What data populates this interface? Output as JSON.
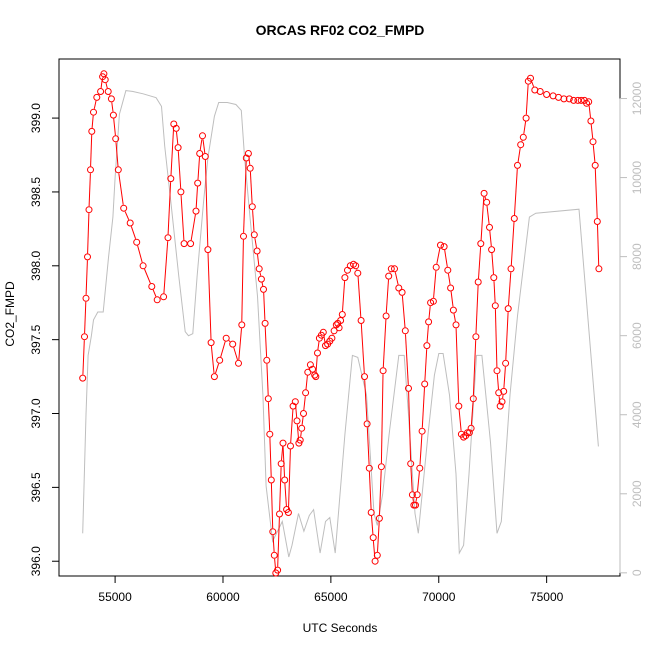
{
  "chart_data": {
    "type": "line",
    "title": "ORCAS RF02 CO2_FMPD",
    "xlabel": "UTC Seconds",
    "ylabel": "CO2_FMPD",
    "xlim": [
      52400,
      78400
    ],
    "ylim": [
      395.9,
      399.4
    ],
    "y2lim": [
      -80,
      13000
    ],
    "x_ticks": [
      55000,
      60000,
      65000,
      70000,
      75000
    ],
    "y_ticks": [
      396.0,
      396.5,
      397.0,
      397.5,
      398.0,
      398.5,
      399.0
    ],
    "y2_ticks": [
      0,
      2000,
      4000,
      6000,
      8000,
      10000,
      12000
    ],
    "x_tick_labels": [
      "55000",
      "60000",
      "65000",
      "70000",
      "75000"
    ],
    "y_tick_labels": [
      "396.0",
      "396.5",
      "397.0",
      "397.5",
      "398.0",
      "398.5",
      "399.0"
    ],
    "y2_tick_labels": [
      "0",
      "2000",
      "4000",
      "6000",
      "8000",
      "10000",
      "12000"
    ],
    "grid": false,
    "series": [
      {
        "color": "#ff0000",
        "marker": "open-circle",
        "axis": "left",
        "points": [
          [
            53500,
            397.24
          ],
          [
            53580,
            397.52
          ],
          [
            53650,
            397.78
          ],
          [
            53720,
            398.06
          ],
          [
            53790,
            398.38
          ],
          [
            53860,
            398.65
          ],
          [
            53920,
            398.91
          ],
          [
            54000,
            399.04
          ],
          [
            54150,
            399.14
          ],
          [
            54330,
            399.18
          ],
          [
            54420,
            399.28
          ],
          [
            54480,
            399.3
          ],
          [
            54540,
            399.26
          ],
          [
            54680,
            399.18
          ],
          [
            54830,
            399.13
          ],
          [
            54920,
            399.02
          ],
          [
            55030,
            398.86
          ],
          [
            55150,
            398.65
          ],
          [
            55400,
            398.39
          ],
          [
            55700,
            398.29
          ],
          [
            56000,
            398.16
          ],
          [
            56300,
            398.0
          ],
          [
            56700,
            397.86
          ],
          [
            56950,
            397.77
          ],
          [
            57250,
            397.79
          ],
          [
            57450,
            398.19
          ],
          [
            57580,
            398.59
          ],
          [
            57720,
            398.96
          ],
          [
            57830,
            398.93
          ],
          [
            57920,
            398.8
          ],
          [
            58050,
            398.5
          ],
          [
            58200,
            398.15
          ],
          [
            58500,
            398.15
          ],
          [
            58750,
            398.37
          ],
          [
            58830,
            398.56
          ],
          [
            58920,
            398.76
          ],
          [
            59050,
            398.88
          ],
          [
            59180,
            398.74
          ],
          [
            59300,
            398.11
          ],
          [
            59450,
            397.48
          ],
          [
            59600,
            397.25
          ],
          [
            59850,
            397.36
          ],
          [
            60150,
            397.51
          ],
          [
            60450,
            397.47
          ],
          [
            60720,
            397.34
          ],
          [
            60870,
            397.6
          ],
          [
            60950,
            398.2
          ],
          [
            61080,
            398.73
          ],
          [
            61180,
            398.76
          ],
          [
            61260,
            398.66
          ],
          [
            61360,
            398.4
          ],
          [
            61450,
            398.21
          ],
          [
            61580,
            398.1
          ],
          [
            61680,
            397.98
          ],
          [
            61780,
            397.91
          ],
          [
            61880,
            397.84
          ],
          [
            61950,
            397.61
          ],
          [
            62030,
            397.36
          ],
          [
            62100,
            397.1
          ],
          [
            62170,
            396.86
          ],
          [
            62240,
            396.55
          ],
          [
            62310,
            396.2
          ],
          [
            62380,
            396.04
          ],
          [
            62450,
            395.92
          ],
          [
            62530,
            395.94
          ],
          [
            62620,
            396.32
          ],
          [
            62700,
            396.66
          ],
          [
            62780,
            396.8
          ],
          [
            62860,
            396.55
          ],
          [
            62950,
            396.35
          ],
          [
            63030,
            396.33
          ],
          [
            63130,
            396.78
          ],
          [
            63250,
            397.05
          ],
          [
            63350,
            397.08
          ],
          [
            63430,
            396.95
          ],
          [
            63520,
            396.8
          ],
          [
            63580,
            396.82
          ],
          [
            63650,
            396.9
          ],
          [
            63730,
            397.0
          ],
          [
            63830,
            397.14
          ],
          [
            63930,
            397.28
          ],
          [
            64050,
            397.33
          ],
          [
            64150,
            397.3
          ],
          [
            64250,
            397.26
          ],
          [
            64300,
            397.25
          ],
          [
            64380,
            397.41
          ],
          [
            64470,
            397.51
          ],
          [
            64560,
            397.53
          ],
          [
            64650,
            397.55
          ],
          [
            64750,
            397.46
          ],
          [
            64850,
            397.47
          ],
          [
            64950,
            397.49
          ],
          [
            65050,
            397.51
          ],
          [
            65150,
            397.56
          ],
          [
            65250,
            397.6
          ],
          [
            65320,
            397.61
          ],
          [
            65380,
            397.58
          ],
          [
            65450,
            397.63
          ],
          [
            65530,
            397.67
          ],
          [
            65650,
            397.92
          ],
          [
            65770,
            397.97
          ],
          [
            65900,
            398.0
          ],
          [
            66050,
            398.01
          ],
          [
            66150,
            398.0
          ],
          [
            66250,
            397.95
          ],
          [
            66400,
            397.63
          ],
          [
            66560,
            397.25
          ],
          [
            66680,
            396.93
          ],
          [
            66780,
            396.63
          ],
          [
            66870,
            396.33
          ],
          [
            66960,
            396.16
          ],
          [
            67050,
            396.0
          ],
          [
            67150,
            396.04
          ],
          [
            67250,
            396.29
          ],
          [
            67340,
            396.64
          ],
          [
            67420,
            397.29
          ],
          [
            67560,
            397.66
          ],
          [
            67680,
            397.93
          ],
          [
            67800,
            397.98
          ],
          [
            67950,
            397.98
          ],
          [
            68150,
            397.85
          ],
          [
            68300,
            397.82
          ],
          [
            68450,
            397.56
          ],
          [
            68600,
            397.17
          ],
          [
            68700,
            396.66
          ],
          [
            68780,
            396.45
          ],
          [
            68850,
            396.38
          ],
          [
            68920,
            396.38
          ],
          [
            69000,
            396.45
          ],
          [
            69120,
            396.63
          ],
          [
            69230,
            396.88
          ],
          [
            69350,
            397.2
          ],
          [
            69450,
            397.46
          ],
          [
            69530,
            397.62
          ],
          [
            69620,
            397.75
          ],
          [
            69750,
            397.76
          ],
          [
            69880,
            397.99
          ],
          [
            70080,
            398.14
          ],
          [
            70250,
            398.13
          ],
          [
            70420,
            397.97
          ],
          [
            70550,
            397.85
          ],
          [
            70680,
            397.7
          ],
          [
            70800,
            397.6
          ],
          [
            70930,
            397.05
          ],
          [
            71050,
            396.86
          ],
          [
            71150,
            396.84
          ],
          [
            71250,
            396.85
          ],
          [
            71330,
            396.87
          ],
          [
            71420,
            396.87
          ],
          [
            71500,
            396.9
          ],
          [
            71600,
            397.1
          ],
          [
            71720,
            397.52
          ],
          [
            71830,
            397.89
          ],
          [
            71950,
            398.15
          ],
          [
            72100,
            398.49
          ],
          [
            72220,
            398.43
          ],
          [
            72350,
            398.26
          ],
          [
            72450,
            398.11
          ],
          [
            72550,
            397.92
          ],
          [
            72620,
            397.73
          ],
          [
            72700,
            397.29
          ],
          [
            72780,
            397.14
          ],
          [
            72850,
            397.05
          ],
          [
            72930,
            397.08
          ],
          [
            73010,
            397.15
          ],
          [
            73100,
            397.34
          ],
          [
            73220,
            397.71
          ],
          [
            73350,
            397.98
          ],
          [
            73500,
            398.32
          ],
          [
            73650,
            398.68
          ],
          [
            73800,
            398.82
          ],
          [
            73920,
            398.87
          ],
          [
            74050,
            399.0
          ],
          [
            74150,
            399.25
          ],
          [
            74250,
            399.27
          ],
          [
            74450,
            399.19
          ],
          [
            74700,
            399.18
          ],
          [
            75000,
            399.16
          ],
          [
            75300,
            399.15
          ],
          [
            75550,
            399.14
          ],
          [
            75800,
            399.13
          ],
          [
            76050,
            399.13
          ],
          [
            76250,
            399.12
          ],
          [
            76450,
            399.12
          ],
          [
            76600,
            399.12
          ],
          [
            76750,
            399.12
          ],
          [
            76850,
            399.1
          ],
          [
            76950,
            399.11
          ],
          [
            77050,
            398.98
          ],
          [
            77150,
            398.84
          ],
          [
            77250,
            398.68
          ],
          [
            77350,
            398.3
          ],
          [
            77420,
            397.98
          ]
        ]
      },
      {
        "color": "#bebebe",
        "marker": "none",
        "axis": "right",
        "points": [
          [
            53500,
            1000
          ],
          [
            53550,
            2000
          ],
          [
            53650,
            4000
          ],
          [
            53750,
            5500
          ],
          [
            53900,
            6000
          ],
          [
            54000,
            6400
          ],
          [
            54200,
            6600
          ],
          [
            54450,
            6600
          ],
          [
            54700,
            8000
          ],
          [
            54900,
            9000
          ],
          [
            55000,
            10000
          ],
          [
            55200,
            11600
          ],
          [
            55500,
            12200
          ],
          [
            55800,
            12180
          ],
          [
            56300,
            12120
          ],
          [
            56900,
            12020
          ],
          [
            57150,
            11800
          ],
          [
            57300,
            10800
          ],
          [
            57600,
            9300
          ],
          [
            57950,
            7500
          ],
          [
            58250,
            6100
          ],
          [
            58400,
            6000
          ],
          [
            58600,
            6050
          ],
          [
            58800,
            7500
          ],
          [
            59100,
            9400
          ],
          [
            59300,
            10500
          ],
          [
            59600,
            11550
          ],
          [
            59800,
            11900
          ],
          [
            60200,
            11900
          ],
          [
            60600,
            11850
          ],
          [
            60850,
            11700
          ],
          [
            61000,
            10500
          ],
          [
            61250,
            9000
          ],
          [
            61600,
            7000
          ],
          [
            61850,
            4500
          ],
          [
            62000,
            2200
          ],
          [
            62300,
            800
          ],
          [
            62750,
            1300
          ],
          [
            63050,
            400
          ],
          [
            63200,
            700
          ],
          [
            63500,
            1500
          ],
          [
            63750,
            1050
          ],
          [
            64000,
            1450
          ],
          [
            64200,
            1600
          ],
          [
            64500,
            500
          ],
          [
            64750,
            1300
          ],
          [
            64950,
            1400
          ],
          [
            65200,
            500
          ],
          [
            65650,
            3500
          ],
          [
            66000,
            5500
          ],
          [
            66250,
            5450
          ],
          [
            66650,
            4500
          ],
          [
            67000,
            1500
          ],
          [
            67150,
            1200
          ],
          [
            67400,
            2000
          ],
          [
            67700,
            3500
          ],
          [
            68150,
            5500
          ],
          [
            68400,
            5500
          ],
          [
            68600,
            4000
          ],
          [
            68900,
            1500
          ],
          [
            69050,
            1000
          ],
          [
            69500,
            3500
          ],
          [
            69800,
            5000
          ],
          [
            70000,
            5550
          ],
          [
            70200,
            5550
          ],
          [
            70500,
            4500
          ],
          [
            70800,
            2500
          ],
          [
            70950,
            500
          ],
          [
            71150,
            700
          ],
          [
            71400,
            2500
          ],
          [
            71750,
            5500
          ],
          [
            72000,
            5500
          ],
          [
            72400,
            3300
          ],
          [
            72700,
            1000
          ],
          [
            72900,
            1300
          ],
          [
            73300,
            4500
          ],
          [
            73650,
            6500
          ],
          [
            74200,
            9000
          ],
          [
            74500,
            9100
          ],
          [
            76500,
            9200
          ],
          [
            77400,
            3200
          ]
        ]
      }
    ]
  }
}
